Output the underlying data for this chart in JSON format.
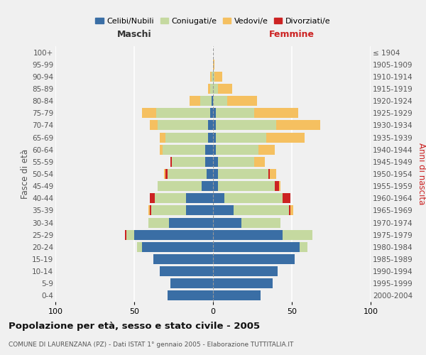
{
  "age_groups": [
    "0-4",
    "5-9",
    "10-14",
    "15-19",
    "20-24",
    "25-29",
    "30-34",
    "35-39",
    "40-44",
    "45-49",
    "50-54",
    "55-59",
    "60-64",
    "65-69",
    "70-74",
    "75-79",
    "80-84",
    "85-89",
    "90-94",
    "95-99",
    "100+"
  ],
  "birth_years": [
    "2000-2004",
    "1995-1999",
    "1990-1994",
    "1985-1989",
    "1980-1984",
    "1975-1979",
    "1970-1974",
    "1965-1969",
    "1960-1964",
    "1955-1959",
    "1950-1954",
    "1945-1949",
    "1940-1944",
    "1935-1939",
    "1930-1934",
    "1925-1929",
    "1920-1924",
    "1915-1919",
    "1910-1914",
    "1905-1909",
    "≤ 1904"
  ],
  "colors": {
    "celibi": "#3a6ea5",
    "coniugati": "#c5d9a0",
    "vedovi": "#f5c060",
    "divorziati": "#cc2222"
  },
  "males": {
    "celibi": [
      29,
      27,
      34,
      38,
      45,
      50,
      28,
      17,
      17,
      7,
      4,
      5,
      5,
      3,
      3,
      2,
      1,
      0,
      0,
      0,
      0
    ],
    "coniugati": [
      0,
      0,
      0,
      0,
      3,
      5,
      13,
      22,
      20,
      28,
      25,
      21,
      27,
      27,
      32,
      34,
      7,
      2,
      1,
      0,
      0
    ],
    "vedovi": [
      0,
      0,
      0,
      0,
      0,
      0,
      0,
      1,
      0,
      0,
      1,
      0,
      2,
      4,
      5,
      9,
      7,
      1,
      1,
      0,
      0
    ],
    "divorziati": [
      0,
      0,
      0,
      0,
      0,
      1,
      0,
      1,
      3,
      0,
      1,
      1,
      0,
      0,
      0,
      0,
      0,
      0,
      0,
      0,
      0
    ]
  },
  "females": {
    "nubili": [
      30,
      38,
      41,
      52,
      55,
      44,
      18,
      13,
      7,
      3,
      3,
      3,
      2,
      2,
      2,
      2,
      0,
      0,
      0,
      0,
      0
    ],
    "coniugate": [
      0,
      0,
      0,
      0,
      5,
      19,
      25,
      35,
      37,
      36,
      32,
      23,
      27,
      32,
      38,
      24,
      9,
      3,
      1,
      0,
      0
    ],
    "vedove": [
      0,
      0,
      0,
      0,
      0,
      0,
      0,
      2,
      0,
      1,
      4,
      7,
      10,
      24,
      28,
      28,
      19,
      9,
      5,
      1,
      0
    ],
    "divorziate": [
      0,
      0,
      0,
      0,
      0,
      0,
      0,
      1,
      5,
      3,
      1,
      0,
      0,
      0,
      0,
      0,
      0,
      0,
      0,
      0,
      0
    ]
  },
  "title": "Popolazione per età, sesso e stato civile - 2005",
  "subtitle": "COMUNE DI LAURENZANA (PZ) - Dati ISTAT 1° gennaio 2005 - Elaborazione TUTTITALIA.IT",
  "xlabel_left": "Maschi",
  "xlabel_right": "Femmine",
  "ylabel_left": "Fasce di età",
  "ylabel_right": "Anni di nascita",
  "legend_labels": [
    "Celibi/Nubili",
    "Coniugati/e",
    "Vedovi/e",
    "Divorziati/e"
  ],
  "xlim": 100,
  "background_color": "#f0f0f0"
}
